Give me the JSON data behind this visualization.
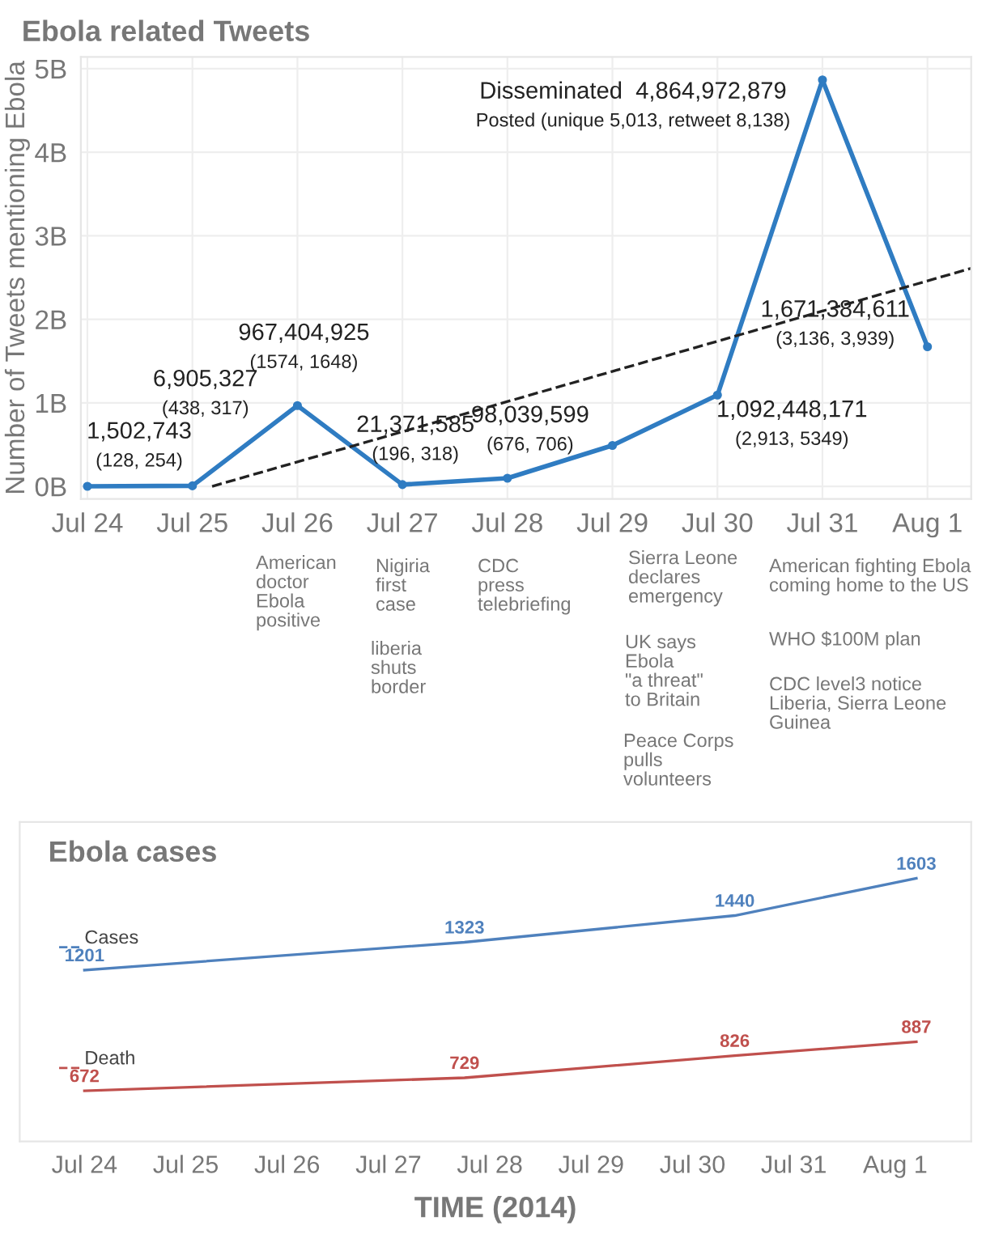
{
  "chart_data": [
    {
      "type": "line",
      "title": "Ebola related Tweets",
      "ylabel": "Number of Tweets mentioning Ebola",
      "marker": "circle",
      "grid": true,
      "x": [
        "2014-07-24",
        "2014-07-25",
        "2014-07-26",
        "2014-07-27",
        "2014-07-28",
        "2014-07-29",
        "2014-07-30",
        "2014-07-31",
        "2014-08-01"
      ],
      "series": [
        {
          "color": "#2f7cc2",
          "values": [
            1502743,
            6905327,
            967404925,
            21371585,
            98039599,
            490000000,
            1092448171,
            4864972879,
            1671384611
          ],
          "value_labels": [
            "1,502,743\n(128, 254)",
            "6,905,327\n(438, 317)",
            "967,404,925\n(1574, 1648)",
            "21,371,585\n(196, 318)",
            "98,039,599\n(676, 706)",
            null,
            "1,092,448,171\n(2,913, 5349)",
            "Disseminated  4,864,972,879\nPosted (unique 5,013, retweet 8,138)",
            "1,671,384,611\n(3,136, 3,939)"
          ]
        },
        {
          "type": "line",
          "x": [
            "2014-07-25T04:30",
            "2014-08-01T10:00"
          ],
          "values": [
            0,
            2610000000
          ],
          "color": "#222222",
          "line_style": "dashed",
          "marker": "none"
        }
      ],
      "xlim": [
        "2014-07-23T22:30",
        "2014-08-01T10:00"
      ],
      "xticks": [
        {
          "value": "2014-07-24",
          "label": "Jul 24"
        },
        {
          "value": "2014-07-25",
          "label": "Jul 25"
        },
        {
          "value": "2014-07-26",
          "label": "Jul 26"
        },
        {
          "value": "2014-07-27",
          "label": "Jul 27"
        },
        {
          "value": "2014-07-28",
          "label": "Jul 28"
        },
        {
          "value": "2014-07-29",
          "label": "Jul 29"
        },
        {
          "value": "2014-07-30",
          "label": "Jul 30"
        },
        {
          "value": "2014-07-31",
          "label": "Jul 31"
        },
        {
          "value": "2014-08-01",
          "label": "Aug 1"
        }
      ],
      "ylim": [
        -150000000,
        5140000000
      ],
      "yticks": [
        {
          "value": 0,
          "label": "0B"
        },
        {
          "value": 1000000000,
          "label": "1B"
        },
        {
          "value": 2000000000,
          "label": "2B"
        },
        {
          "value": 3000000000,
          "label": "3B"
        },
        {
          "value": 4000000000,
          "label": "4B"
        },
        {
          "value": 5000000000,
          "label": "5B"
        }
      ],
      "annotations": [
        "American\ndoctor\nEbola\npositive",
        "Nigiria\nfirst\ncase",
        "liberia\nshuts\nborder",
        "CDC\npress\ntelebriefing",
        "Sierra Leone\ndeclares\nemergency",
        "UK says\nEbola\n\"a threat\"\nto Britain",
        "Peace Corps\npulls\nvolunteers",
        "American fighting Ebola\ncoming home to the US",
        "WHO $100M plan",
        "CDC level3 notice\nLiberia, Sierra Leone\nGuinea"
      ]
    },
    {
      "type": "line",
      "title": "Ebola cases",
      "xlabel": "TIME (2014)",
      "data_labels": true,
      "legend": "left",
      "tick_labels": "x",
      "line_style": "solid",
      "series": [
        {
          "name": "Cases",
          "color": "#4f81bd",
          "x": [
            "2014-07-24",
            "2014-07-27T18:00",
            "2014-07-30T10:00",
            "2014-08-01T05:00"
          ],
          "values": [
            1201,
            1323,
            1440,
            1603
          ]
        },
        {
          "name": "Death",
          "color": "#c0504d",
          "x": [
            "2014-07-24",
            "2014-07-27T18:00",
            "2014-07-30T10:00",
            "2014-08-01T05:00"
          ],
          "values": [
            672,
            729,
            826,
            887
          ]
        }
      ],
      "xlim": [
        "2014-07-23T08:40",
        "2014-08-01T18:00"
      ],
      "xticks": [
        {
          "value": "2014-07-24",
          "label": "Jul 24"
        },
        {
          "value": "2014-07-25",
          "label": "Jul 25"
        },
        {
          "value": "2014-07-26",
          "label": "Jul 26"
        },
        {
          "value": "2014-07-27",
          "label": "Jul 27"
        },
        {
          "value": "2014-07-28",
          "label": "Jul 28"
        },
        {
          "value": "2014-07-29",
          "label": "Jul 29"
        },
        {
          "value": "2014-07-30",
          "label": "Jul 30"
        },
        {
          "value": "2014-07-31",
          "label": "Jul 31"
        },
        {
          "value": "2014-08-01",
          "label": "Aug 1"
        }
      ],
      "ylim": [
        450,
        1850
      ]
    }
  ]
}
